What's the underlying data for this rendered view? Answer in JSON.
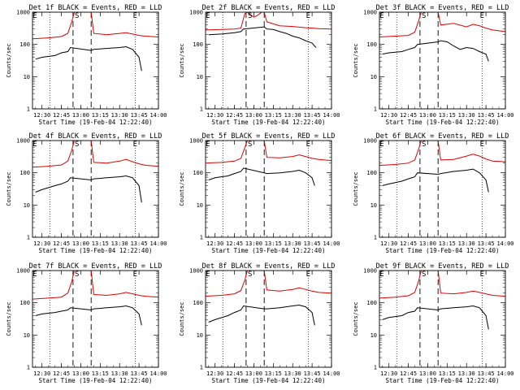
{
  "figure": {
    "x_tick_labels": [
      "12:30",
      "12:45",
      "13:00",
      "13:15",
      "13:30",
      "13:45",
      "14:00"
    ],
    "y_tick_labels": [
      "1",
      "10",
      "100",
      "1000"
    ],
    "xlabel": "Start Time (19-Feb-04 12:22:40)",
    "ylabel": "Counts/sec",
    "marker_s": "S",
    "marker_e": "E"
  },
  "colors": {
    "events": "#000000",
    "lld": "#e00000",
    "axes": "#000000"
  },
  "chart_data": [
    {
      "type": "line",
      "title": "Det 1f BLACK = Events, RED = LLD",
      "xlabel": "Start Time (19-Feb-04 12:22:40)",
      "ylabel": "Counts/sec",
      "ylog": true,
      "xlim": [
        "12:22:40",
        "14:00"
      ],
      "ylim": [
        1,
        1000
      ],
      "vlines_dotted": [
        "12:36",
        "13:42"
      ],
      "vlines_dashed": [
        "12:54",
        "13:08"
      ],
      "markers": [
        {
          "label": "S",
          "x": "12:57"
        },
        {
          "label": "E",
          "x": "13:42"
        }
      ],
      "series": [
        {
          "x": [
            "12:22:40",
            "12:35",
            "12:45",
            "12:50",
            "12:53",
            "12:55",
            "13:00",
            "13:05",
            "13:08",
            "13:10",
            "13:20",
            "13:30",
            "13:35",
            "13:40",
            "13:45",
            "13:50",
            "14:00"
          ],
          "values": [
            150,
            160,
            175,
            220,
            500,
            1000,
            1000,
            1000,
            1000,
            220,
            200,
            220,
            230,
            210,
            190,
            180,
            170
          ]
        },
        {
          "x": [
            "12:25",
            "12:30",
            "12:40",
            "12:45",
            "12:50",
            "12:52",
            "13:08",
            "13:10",
            "13:20",
            "13:30",
            "13:35",
            "13:40",
            "13:45",
            "13:47"
          ],
          "values": [
            35,
            40,
            45,
            55,
            60,
            80,
            65,
            70,
            75,
            80,
            85,
            70,
            40,
            15
          ]
        }
      ]
    },
    {
      "type": "line",
      "title": "Det 2f BLACK = Events, RED = LLD",
      "xlabel": "Start Time (19-Feb-04 12:22:40)",
      "ylabel": "Counts/sec",
      "ylog": true,
      "xlim": [
        "12:22:40",
        "14:00"
      ],
      "ylim": [
        1,
        1000
      ],
      "vlines_dotted": [
        "12:36",
        "13:42"
      ],
      "vlines_dashed": [
        "12:54",
        "13:08"
      ],
      "markers": [
        {
          "label": "S",
          "x": "12:57"
        },
        {
          "label": "E",
          "x": "13:42"
        }
      ],
      "series": [
        {
          "x": [
            "12:22:40",
            "12:35",
            "12:45",
            "12:50",
            "12:53",
            "12:55",
            "12:58",
            "13:00",
            "13:03",
            "13:06",
            "13:08",
            "13:10",
            "13:20",
            "13:30",
            "13:40",
            "13:50",
            "14:00"
          ],
          "values": [
            280,
            290,
            300,
            320,
            900,
            1000,
            800,
            700,
            800,
            1000,
            1000,
            500,
            380,
            360,
            330,
            310,
            300
          ]
        },
        {
          "x": [
            "12:25",
            "12:35",
            "12:45",
            "12:50",
            "12:52",
            "13:08",
            "13:10",
            "13:15",
            "13:20",
            "13:25",
            "13:30",
            "13:35",
            "13:40",
            "13:45",
            "13:48"
          ],
          "values": [
            200,
            210,
            230,
            250,
            300,
            350,
            300,
            290,
            250,
            220,
            180,
            160,
            130,
            110,
            80
          ]
        }
      ]
    },
    {
      "type": "line",
      "title": "Det 3f BLACK = Events, RED = LLD",
      "xlabel": "Start Time (19-Feb-04 12:22:40)",
      "ylabel": "Counts/sec",
      "ylog": true,
      "xlim": [
        "12:22:40",
        "14:00"
      ],
      "ylim": [
        1,
        1000
      ],
      "vlines_dotted": [
        "12:36",
        "13:42"
      ],
      "vlines_dashed": [
        "12:54",
        "13:08"
      ],
      "markers": [
        {
          "label": "S",
          "x": "12:57"
        },
        {
          "label": "E",
          "x": "13:42"
        }
      ],
      "series": [
        {
          "x": [
            "12:22:40",
            "12:35",
            "12:45",
            "12:50",
            "12:53",
            "12:55",
            "13:00",
            "13:05",
            "13:08",
            "13:10",
            "13:20",
            "13:30",
            "13:35",
            "13:40",
            "13:45",
            "13:50",
            "14:00"
          ],
          "values": [
            170,
            180,
            190,
            240,
            550,
            1000,
            1000,
            1000,
            1000,
            400,
            450,
            350,
            420,
            380,
            320,
            280,
            250
          ]
        },
        {
          "x": [
            "12:25",
            "12:30",
            "12:40",
            "12:45",
            "12:50",
            "12:52",
            "13:08",
            "13:10",
            "13:15",
            "13:20",
            "13:25",
            "13:30",
            "13:35",
            "13:40",
            "13:45",
            "13:47"
          ],
          "values": [
            50,
            55,
            60,
            70,
            80,
            100,
            120,
            130,
            120,
            90,
            70,
            80,
            75,
            60,
            50,
            30
          ]
        }
      ]
    },
    {
      "type": "line",
      "title": "Det 4f BLACK = Events, RED = LLD",
      "xlabel": "Start Time (19-Feb-04 12:22:40)",
      "ylabel": "Counts/sec",
      "ylog": true,
      "xlim": [
        "12:22:40",
        "14:00"
      ],
      "ylim": [
        1,
        1000
      ],
      "vlines_dotted": [
        "12:36",
        "13:42"
      ],
      "vlines_dashed": [
        "12:54",
        "13:08"
      ],
      "markers": [
        {
          "label": "S",
          "x": "12:57"
        },
        {
          "label": "E",
          "x": "13:42"
        }
      ],
      "series": [
        {
          "x": [
            "12:22:40",
            "12:35",
            "12:45",
            "12:50",
            "12:53",
            "12:55",
            "13:00",
            "13:05",
            "13:08",
            "13:10",
            "13:20",
            "13:30",
            "13:35",
            "13:40",
            "13:45",
            "13:50",
            "14:00"
          ],
          "values": [
            150,
            160,
            175,
            230,
            500,
            1000,
            1000,
            1000,
            1000,
            210,
            200,
            230,
            260,
            220,
            190,
            170,
            160
          ]
        },
        {
          "x": [
            "12:25",
            "12:30",
            "12:40",
            "12:45",
            "12:50",
            "12:52",
            "13:08",
            "13:10",
            "13:20",
            "13:30",
            "13:35",
            "13:40",
            "13:45",
            "13:47"
          ],
          "values": [
            25,
            30,
            40,
            45,
            55,
            70,
            60,
            65,
            70,
            75,
            80,
            70,
            40,
            12
          ]
        }
      ]
    },
    {
      "type": "line",
      "title": "Det 5f BLACK = Events, RED = LLD",
      "xlabel": "Start Time (19-Feb-04 12:22:40)",
      "ylabel": "Counts/sec",
      "ylog": true,
      "xlim": [
        "12:22:40",
        "14:00"
      ],
      "ylim": [
        1,
        1000
      ],
      "vlines_dotted": [
        "12:36",
        "13:42"
      ],
      "vlines_dashed": [
        "12:54",
        "13:08"
      ],
      "markers": [
        {
          "label": "S",
          "x": "12:57"
        },
        {
          "label": "E",
          "x": "13:42"
        }
      ],
      "series": [
        {
          "x": [
            "12:22:40",
            "12:35",
            "12:45",
            "12:50",
            "12:53",
            "12:55",
            "13:00",
            "13:05",
            "13:08",
            "13:10",
            "13:20",
            "13:30",
            "13:35",
            "13:40",
            "13:45",
            "13:50",
            "14:00"
          ],
          "values": [
            200,
            210,
            230,
            280,
            600,
            1000,
            1000,
            1000,
            1000,
            300,
            290,
            320,
            360,
            320,
            280,
            260,
            240
          ]
        },
        {
          "x": [
            "12:25",
            "12:30",
            "12:40",
            "12:45",
            "12:50",
            "12:52",
            "13:08",
            "13:10",
            "13:20",
            "13:30",
            "13:35",
            "13:40",
            "13:45",
            "13:47"
          ],
          "values": [
            60,
            70,
            80,
            95,
            110,
            140,
            100,
            95,
            100,
            110,
            120,
            100,
            70,
            40
          ]
        }
      ]
    },
    {
      "type": "line",
      "title": "Det 6f BLACK = Events, RED = LLD",
      "xlabel": "Start Time (19-Feb-04 12:22:40)",
      "ylabel": "Counts/sec",
      "ylog": true,
      "xlim": [
        "12:22:40",
        "14:00"
      ],
      "ylim": [
        1,
        1000
      ],
      "vlines_dotted": [
        "12:36",
        "13:42"
      ],
      "vlines_dashed": [
        "12:54",
        "13:08"
      ],
      "markers": [
        {
          "label": "S",
          "x": "12:57"
        },
        {
          "label": "E",
          "x": "13:42"
        }
      ],
      "series": [
        {
          "x": [
            "12:22:40",
            "12:35",
            "12:45",
            "12:50",
            "12:53",
            "12:55",
            "13:00",
            "13:05",
            "13:08",
            "13:10",
            "13:20",
            "13:30",
            "13:35",
            "13:40",
            "13:45",
            "13:50",
            "14:00"
          ],
          "values": [
            170,
            180,
            200,
            250,
            550,
            1000,
            1000,
            1000,
            1000,
            250,
            260,
            330,
            380,
            330,
            270,
            230,
            220
          ]
        },
        {
          "x": [
            "12:25",
            "12:30",
            "12:40",
            "12:45",
            "12:50",
            "12:52",
            "13:08",
            "13:10",
            "13:20",
            "13:30",
            "13:35",
            "13:40",
            "13:45",
            "13:47"
          ],
          "values": [
            40,
            45,
            55,
            65,
            75,
            100,
            90,
            95,
            110,
            120,
            130,
            100,
            60,
            25
          ]
        }
      ]
    },
    {
      "type": "line",
      "title": "Det 7f BLACK = Events, RED = LLD",
      "xlabel": "Start Time (19-Feb-04 12:22:40)",
      "ylabel": "Counts/sec",
      "ylog": true,
      "xlim": [
        "12:22:40",
        "14:00"
      ],
      "ylim": [
        1,
        1000
      ],
      "vlines_dotted": [
        "12:36",
        "13:42"
      ],
      "vlines_dashed": [
        "12:54",
        "13:08"
      ],
      "markers": [
        {
          "label": "S",
          "x": "12:57"
        },
        {
          "label": "E",
          "x": "13:42"
        }
      ],
      "series": [
        {
          "x": [
            "12:22:40",
            "12:35",
            "12:45",
            "12:50",
            "12:53",
            "12:55",
            "13:00",
            "13:05",
            "13:08",
            "13:10",
            "13:20",
            "13:30",
            "13:35",
            "13:40",
            "13:45",
            "13:50",
            "14:00"
          ],
          "values": [
            130,
            140,
            150,
            200,
            450,
            1000,
            1000,
            1000,
            1000,
            180,
            170,
            190,
            210,
            190,
            170,
            160,
            150
          ]
        },
        {
          "x": [
            "12:25",
            "12:30",
            "12:40",
            "12:45",
            "12:50",
            "12:52",
            "13:08",
            "13:10",
            "13:20",
            "13:30",
            "13:35",
            "13:40",
            "13:45",
            "13:47"
          ],
          "values": [
            40,
            45,
            50,
            55,
            60,
            70,
            60,
            65,
            70,
            75,
            80,
            70,
            45,
            20
          ]
        }
      ]
    },
    {
      "type": "line",
      "title": "Det 8f BLACK = Events, RED = LLD",
      "xlabel": "Start Time (19-Feb-04 12:22:40)",
      "ylabel": "Counts/sec",
      "ylog": true,
      "xlim": [
        "12:22:40",
        "14:00"
      ],
      "ylim": [
        1,
        1000
      ],
      "vlines_dotted": [
        "12:36",
        "13:42"
      ],
      "vlines_dashed": [
        "12:54",
        "13:08"
      ],
      "markers": [
        {
          "label": "S",
          "x": "12:57"
        },
        {
          "label": "E",
          "x": "13:42"
        }
      ],
      "series": [
        {
          "x": [
            "12:22:40",
            "12:35",
            "12:45",
            "12:50",
            "12:53",
            "12:55",
            "13:00",
            "13:05",
            "13:08",
            "13:10",
            "13:20",
            "13:30",
            "13:35",
            "13:40",
            "13:45",
            "13:50",
            "14:00"
          ],
          "values": [
            160,
            170,
            190,
            240,
            500,
            1000,
            1000,
            1000,
            1000,
            250,
            230,
            260,
            290,
            260,
            230,
            210,
            200
          ]
        },
        {
          "x": [
            "12:25",
            "12:30",
            "12:40",
            "12:45",
            "12:50",
            "12:52",
            "13:08",
            "13:10",
            "13:20",
            "13:30",
            "13:35",
            "13:40",
            "13:45",
            "13:47"
          ],
          "values": [
            25,
            30,
            40,
            50,
            60,
            80,
            65,
            65,
            70,
            80,
            85,
            75,
            50,
            20
          ]
        }
      ]
    },
    {
      "type": "line",
      "title": "Det 9f BLACK = Events, RED = LLD",
      "xlabel": "Start Time (19-Feb-04 12:22:40)",
      "ylabel": "Counts/sec",
      "ylog": true,
      "xlim": [
        "12:22:40",
        "14:00"
      ],
      "ylim": [
        1,
        1000
      ],
      "vlines_dotted": [
        "12:36",
        "13:42"
      ],
      "vlines_dashed": [
        "12:54",
        "13:08"
      ],
      "markers": [
        {
          "label": "S",
          "x": "12:57"
        },
        {
          "label": "E",
          "x": "13:42"
        }
      ],
      "series": [
        {
          "x": [
            "12:22:40",
            "12:35",
            "12:45",
            "12:50",
            "12:53",
            "12:55",
            "13:00",
            "13:05",
            "13:08",
            "13:10",
            "13:20",
            "13:30",
            "13:35",
            "13:40",
            "13:45",
            "13:50",
            "14:00"
          ],
          "values": [
            140,
            150,
            165,
            210,
            480,
            1000,
            1000,
            1000,
            1000,
            200,
            190,
            210,
            230,
            210,
            190,
            170,
            160
          ]
        },
        {
          "x": [
            "12:25",
            "12:30",
            "12:40",
            "12:45",
            "12:50",
            "12:52",
            "13:08",
            "13:10",
            "13:20",
            "13:30",
            "13:35",
            "13:40",
            "13:45",
            "13:47"
          ],
          "values": [
            30,
            35,
            40,
            50,
            55,
            70,
            60,
            65,
            70,
            75,
            80,
            70,
            40,
            15
          ]
        }
      ]
    }
  ]
}
